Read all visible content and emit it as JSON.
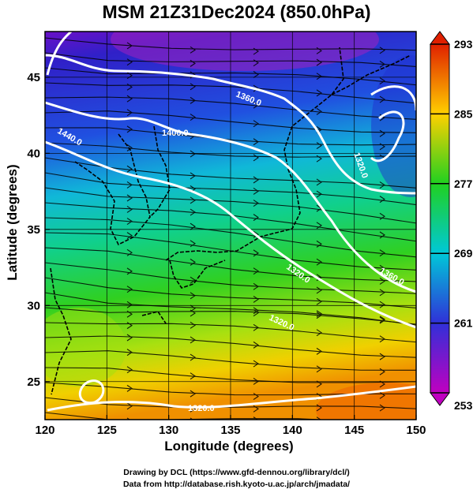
{
  "title": "MSM 21Z31Dec2024 (850.0hPa)",
  "x_axis": {
    "label": "Longitude (degrees)",
    "range": [
      120,
      150
    ],
    "ticks": [
      120,
      125,
      130,
      135,
      140,
      145,
      150
    ]
  },
  "y_axis": {
    "label": "Latitude  (degrees)",
    "range": [
      22.5,
      48
    ],
    "ticks": [
      25,
      30,
      35,
      40,
      45
    ]
  },
  "colorbar": {
    "range": [
      253,
      293
    ],
    "labels": [
      253,
      261,
      269,
      277,
      285,
      293
    ],
    "colors": [
      "#c000c0",
      "#3030d8",
      "#00c8d8",
      "#20d020",
      "#ffd000",
      "#e02000"
    ]
  },
  "contour_labels": [
    "1360.0",
    "1400.0",
    "1440.0",
    "1320.0",
    "1320.0",
    "1360.0",
    "1320.0",
    "1320.0",
    "1280.0",
    "1320.0"
  ],
  "credits": {
    "line1": "Drawing by DCL (https://www.gfd-dennou.org/library/dcl/)",
    "line2": "Data from http://database.rish.kyoto-u.ac.jp/arch/jmadata/"
  }
}
